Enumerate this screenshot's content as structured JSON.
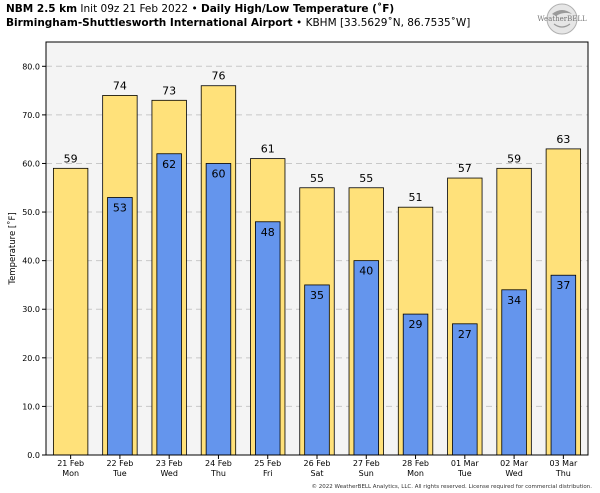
{
  "header": {
    "model": "NBM 2.5 km",
    "init": "Init 09z 21 Feb 2022",
    "separator": "•",
    "product": "Daily High/Low Temperature (˚F)",
    "location": "Birmingham-Shuttlesworth International Airport",
    "station": "KBHM [33.5629˚N, 86.7535˚W]"
  },
  "logo": {
    "text": "WeatherBELL"
  },
  "footer": {
    "text": "© 2022 WeatherBELL Analytics, LLC. All rights reserved. License required for commercial distribution."
  },
  "colors": {
    "high": "#ffe17a",
    "low": "#6495ed",
    "grid": "#c8c8c8",
    "plot_bg": "#f4f4f4"
  },
  "chart_data": {
    "type": "bar",
    "ylabel": "Temperature [˚F]",
    "ylim": [
      0,
      85
    ],
    "yticks": [
      "0.0",
      "10.0",
      "20.0",
      "30.0",
      "40.0",
      "50.0",
      "60.0",
      "70.0",
      "80.0"
    ],
    "grid": true,
    "categories": [
      [
        "21 Feb",
        "Mon"
      ],
      [
        "22 Feb",
        "Tue"
      ],
      [
        "23 Feb",
        "Wed"
      ],
      [
        "24 Feb",
        "Thu"
      ],
      [
        "25 Feb",
        "Fri"
      ],
      [
        "26 Feb",
        "Sat"
      ],
      [
        "27 Feb",
        "Sun"
      ],
      [
        "28 Feb",
        "Mon"
      ],
      [
        "01 Mar",
        "Tue"
      ],
      [
        "02 Mar",
        "Wed"
      ],
      [
        "03 Mar",
        "Thu"
      ]
    ],
    "series": [
      {
        "role": "high",
        "values": [
          59,
          74,
          73,
          76,
          61,
          55,
          55,
          51,
          57,
          59,
          63
        ],
        "labels": [
          "59",
          "74",
          "73",
          "76",
          "61",
          "55",
          "55",
          "51",
          "57",
          "59",
          "63"
        ]
      },
      {
        "role": "low",
        "values": [
          null,
          53,
          62,
          60,
          48,
          35,
          40,
          29,
          27,
          34,
          37
        ],
        "labels": [
          null,
          "53",
          "62",
          "60",
          "48",
          "35",
          "40",
          "29",
          "27",
          "34",
          "37"
        ]
      }
    ]
  }
}
